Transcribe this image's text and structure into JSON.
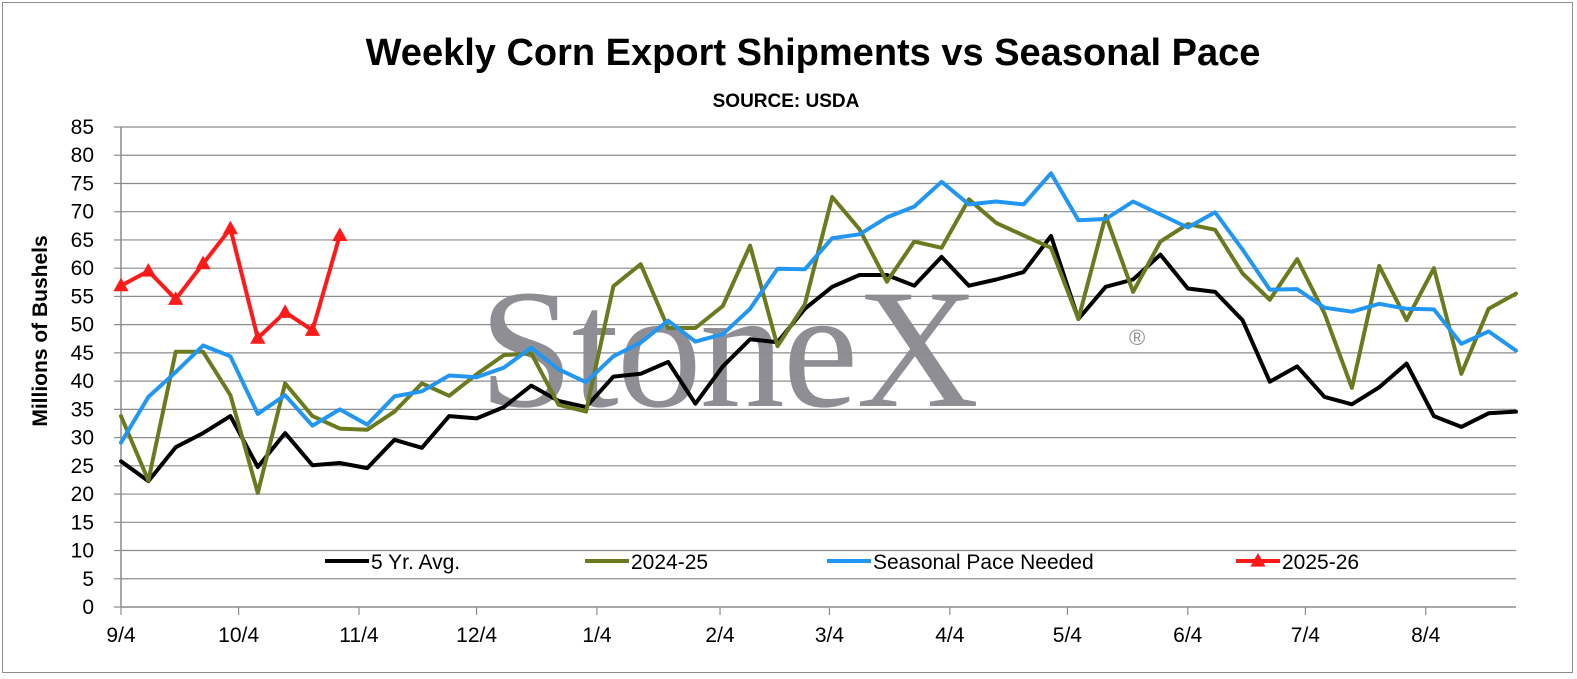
{
  "chart_data": {
    "type": "line",
    "title": "Weekly Corn Export Shipments vs Seasonal Pace",
    "subtitle": "SOURCE: USDA",
    "ylabel": "Millions of Bushels",
    "xlabel": "",
    "ylim": [
      0,
      85
    ],
    "yticks": [
      0,
      5,
      10,
      15,
      20,
      25,
      30,
      35,
      40,
      45,
      50,
      55,
      60,
      65,
      70,
      75,
      80,
      85
    ],
    "xticks": [
      {
        "week": 0,
        "label": "9/4"
      },
      {
        "week": 4.3,
        "label": "10/4"
      },
      {
        "week": 8.7,
        "label": "11/4"
      },
      {
        "week": 13.0,
        "label": "12/4"
      },
      {
        "week": 17.4,
        "label": "1/4"
      },
      {
        "week": 21.9,
        "label": "2/4"
      },
      {
        "week": 25.9,
        "label": "3/4"
      },
      {
        "week": 30.3,
        "label": "4/4"
      },
      {
        "week": 34.6,
        "label": "5/4"
      },
      {
        "week": 39.0,
        "label": "6/4"
      },
      {
        "week": 43.3,
        "label": "7/4"
      },
      {
        "week": 47.7,
        "label": "8/4"
      }
    ],
    "x_range_weeks": [
      0,
      51
    ],
    "grid": true,
    "legend_position": "bottom-inside",
    "watermark": "StoneX",
    "series": [
      {
        "name": "5 Yr. Avg.",
        "color": "#000000",
        "marker": "none",
        "values": [
          25.8,
          22.3,
          28.3,
          30.8,
          33.8,
          24.8,
          30.8,
          25.1,
          25.5,
          24.6,
          29.6,
          28.2,
          33.8,
          33.4,
          35.4,
          39.2,
          36.5,
          35.4,
          40.8,
          41.3,
          43.4,
          36.0,
          42.6,
          47.4,
          46.9,
          52.8,
          56.7,
          58.8,
          58.8,
          56.9,
          62.0,
          56.9,
          58.0,
          59.3,
          65.7,
          51.0,
          56.7,
          58.0,
          62.4,
          56.4,
          55.8,
          50.8,
          39.9,
          42.6,
          37.2,
          35.9,
          38.9,
          43.1,
          33.8,
          31.9,
          34.3,
          34.6
        ]
      },
      {
        "name": "2024-25",
        "color": "#6b7a1f",
        "marker": "none",
        "values": [
          33.8,
          22.4,
          45.2,
          45.2,
          37.5,
          20.2,
          39.6,
          33.8,
          31.6,
          31.4,
          34.6,
          39.6,
          37.4,
          41.2,
          44.6,
          44.9,
          35.8,
          34.6,
          56.8,
          60.7,
          49.4,
          49.4,
          53.3,
          64.0,
          46.2,
          53.6,
          72.6,
          66.9,
          57.6,
          64.7,
          63.6,
          72.2,
          68.0,
          65.8,
          63.6,
          51.0,
          69.3,
          55.8,
          64.7,
          67.8,
          66.8,
          59.1,
          54.4,
          61.6,
          52.0,
          38.8,
          60.4,
          50.8,
          60.0,
          41.3,
          52.8,
          55.5
        ]
      },
      {
        "name": "Seasonal Pace Needed",
        "color": "#2196f3",
        "marker": "none",
        "values": [
          29.1,
          37.2,
          41.6,
          46.3,
          44.4,
          34.2,
          37.5,
          32.1,
          35.0,
          32.3,
          37.3,
          38.2,
          41.0,
          40.7,
          42.4,
          45.9,
          42.1,
          39.8,
          44.4,
          46.8,
          50.7,
          47.0,
          48.3,
          52.8,
          59.9,
          59.8,
          65.3,
          66.0,
          69.0,
          70.9,
          75.3,
          71.3,
          71.8,
          71.3,
          76.8,
          68.5,
          68.7,
          71.8,
          69.5,
          67.2,
          69.9,
          63.3,
          56.2,
          56.3,
          53.0,
          52.3,
          53.7,
          52.8,
          52.7,
          46.6,
          48.8,
          45.4
        ]
      },
      {
        "name": "2025-26",
        "color": "#ff1a1a",
        "marker": "triangle",
        "values": [
          56.9,
          59.5,
          54.5,
          60.8,
          67.0,
          47.6,
          52.2,
          49.0,
          65.8
        ]
      }
    ]
  }
}
